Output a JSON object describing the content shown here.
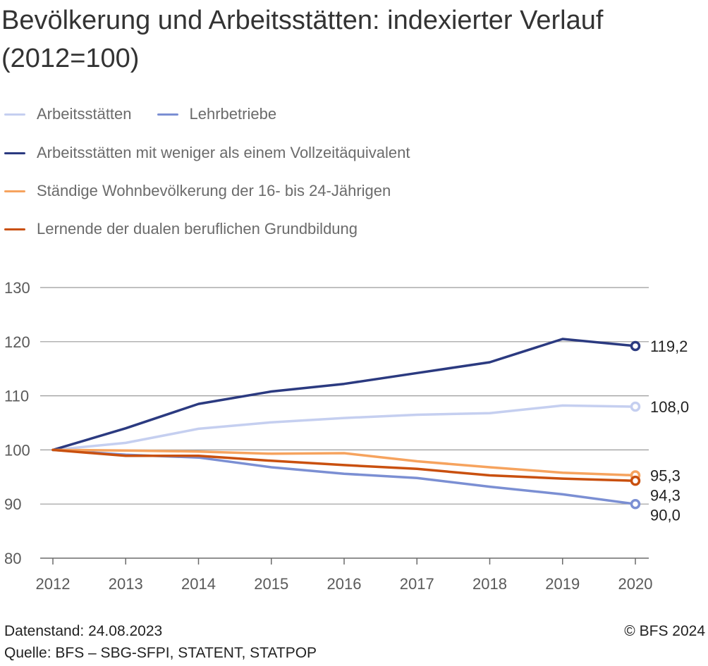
{
  "header": {
    "title": "Bevölkerung und Arbeitsstätten: indexierter Verlauf (2012=100)"
  },
  "footer": {
    "datenstand": "Datenstand: 24.08.2023",
    "quelle": "Quelle: BFS – SBG-SFPI, STATENT, STATPOP",
    "copyright": "© BFS 2024"
  },
  "chart_data": {
    "type": "line",
    "title": "Bevölkerung und Arbeitsstätten: indexierter Verlauf (2012=100)",
    "xlabel": "",
    "ylabel": "",
    "x": [
      2012,
      2013,
      2014,
      2015,
      2016,
      2017,
      2018,
      2019,
      2020
    ],
    "ylim": [
      80,
      130
    ],
    "yticks": [
      80,
      90,
      100,
      110,
      120,
      130
    ],
    "grid": true,
    "legend_position": "top",
    "series": [
      {
        "name": "Arbeitsstätten",
        "color": "#c5cff0",
        "values": [
          100,
          101.3,
          103.9,
          105.1,
          105.9,
          106.5,
          106.8,
          108.2,
          108.0
        ],
        "end_label": "108,0"
      },
      {
        "name": "Lehrbetriebe",
        "color": "#7b8fd3",
        "values": [
          100,
          99.1,
          98.6,
          96.8,
          95.6,
          94.8,
          93.2,
          91.8,
          90.0
        ],
        "end_label": "90,0"
      },
      {
        "name": "Arbeitsstätten mit weniger als einem Vollzeitäquivalent",
        "color": "#2b3a80",
        "values": [
          100,
          104.0,
          108.5,
          110.8,
          112.2,
          114.2,
          116.2,
          120.5,
          119.2
        ],
        "end_label": "119,2"
      },
      {
        "name": "Ständige Wohnbevölkerung der 16- bis 24-Jährigen",
        "color": "#f6a35e",
        "values": [
          100,
          99.9,
          99.7,
          99.3,
          99.4,
          97.9,
          96.8,
          95.8,
          95.3
        ],
        "end_label": "95,3"
      },
      {
        "name": "Lernende der dualen beruflichen Grundbildung",
        "color": "#c9500f",
        "values": [
          100,
          98.9,
          98.9,
          98.0,
          97.2,
          96.5,
          95.3,
          94.7,
          94.3
        ],
        "end_label": "94,3"
      }
    ]
  }
}
